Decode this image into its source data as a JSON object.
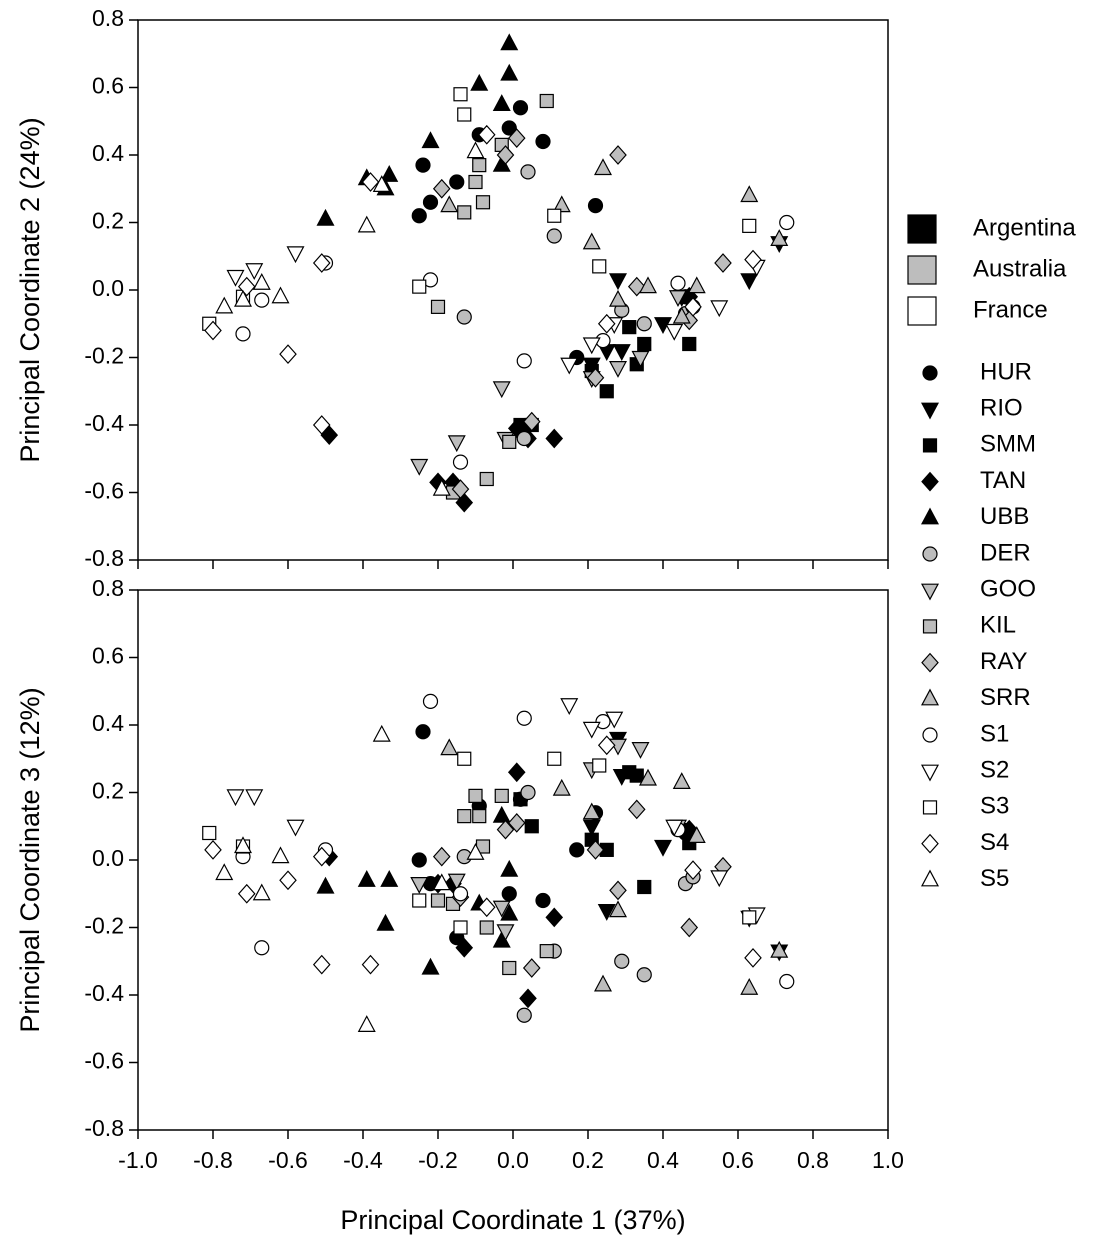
{
  "chart_data": {
    "type": "scatter",
    "xlabel": "Principal Coordinate 1 (37%)",
    "xlim": [
      -1.0,
      1.0
    ],
    "xticks": [
      {
        "value": -1.0,
        "label": "-1.0"
      },
      -0.8,
      -0.6,
      -0.4,
      -0.2,
      {
        "value": 0,
        "label": "0.0"
      },
      0.2,
      0.4,
      0.6,
      0.8,
      {
        "value": 1.0,
        "label": "1.0"
      }
    ],
    "panels": [
      {
        "ylabel": "Principal Coordinate 2 (24%)",
        "ylim": [
          -0.8,
          0.8
        ],
        "yticks": [
          -0.8,
          -0.6,
          -0.4,
          -0.2,
          {
            "value": 0,
            "label": "0.0"
          },
          0.2,
          0.4,
          0.6,
          0.8
        ]
      },
      {
        "ylabel": "Principal Coordinate 3 (12%)",
        "ylim": [
          -0.8,
          0.8
        ],
        "yticks": [
          -0.8,
          -0.6,
          -0.4,
          -0.2,
          {
            "value": 0,
            "label": "0.0"
          },
          0.2,
          0.4,
          0.6,
          0.8
        ]
      }
    ],
    "groups": [
      {
        "name": "Argentina",
        "color": "#000000"
      },
      {
        "name": "Australia",
        "color": "#bdbdbd"
      },
      {
        "name": "France",
        "color": "#ffffff"
      }
    ],
    "series": [
      {
        "name": "HUR",
        "marker": "circle",
        "color": "#000000",
        "x": [
          -0.25,
          -0.24,
          -0.22,
          -0.15,
          -0.09,
          -0.01,
          0.02,
          0.08,
          0.17,
          0.22,
          0.46
        ],
        "y": [
          0.22,
          0.37,
          0.26,
          0.32,
          0.46,
          0.48,
          0.54,
          0.44,
          -0.2,
          0.25,
          -0.02
        ],
        "z": [
          0.0,
          0.38,
          -0.07,
          -0.23,
          0.16,
          -0.1,
          0.18,
          -0.12,
          0.03,
          0.14,
          0.08
        ]
      },
      {
        "name": "RIO",
        "marker": "down-triangle",
        "color": "#000000",
        "x": [
          0.28,
          0.21,
          0.25,
          0.29,
          0.4,
          0.45,
          0.63,
          0.71
        ],
        "y": [
          0.03,
          -0.22,
          -0.18,
          -0.18,
          -0.1,
          -0.02,
          0.03,
          0.14
        ],
        "z": [
          0.36,
          0.1,
          -0.15,
          0.25,
          0.04,
          0.09,
          -0.17,
          -0.27
        ]
      },
      {
        "name": "SMM",
        "marker": "square",
        "color": "#000000",
        "x": [
          0.21,
          0.25,
          0.31,
          0.33,
          0.35,
          0.47,
          0.02,
          0.05
        ],
        "y": [
          -0.24,
          -0.3,
          -0.11,
          -0.22,
          -0.16,
          -0.16,
          -0.4,
          -0.4
        ],
        "z": [
          0.06,
          0.03,
          0.26,
          0.25,
          -0.08,
          0.05,
          0.18,
          0.1
        ]
      },
      {
        "name": "TAN",
        "marker": "diamond",
        "color": "#000000",
        "x": [
          -0.49,
          -0.2,
          -0.16,
          -0.13,
          0.01,
          0.04,
          0.11,
          0.47
        ],
        "y": [
          -0.43,
          -0.57,
          -0.57,
          -0.63,
          -0.41,
          -0.44,
          -0.44,
          -0.02
        ],
        "z": [
          0.01,
          -0.07,
          -0.07,
          -0.26,
          0.26,
          -0.41,
          -0.17,
          0.09
        ]
      },
      {
        "name": "UBB",
        "marker": "up-triangle",
        "color": "#000000",
        "x": [
          -0.5,
          -0.39,
          -0.34,
          -0.33,
          -0.22,
          -0.09,
          -0.03,
          -0.03,
          -0.01,
          -0.01
        ],
        "y": [
          0.21,
          0.33,
          0.3,
          0.34,
          0.44,
          0.61,
          0.55,
          0.37,
          0.73,
          0.64
        ],
        "z": [
          -0.08,
          -0.06,
          -0.19,
          -0.06,
          -0.32,
          -0.13,
          0.13,
          -0.24,
          -0.03,
          -0.16
        ]
      },
      {
        "name": "DER",
        "marker": "circle",
        "color": "#bdbdbd",
        "x": [
          -0.13,
          0.04,
          0.11,
          0.29,
          0.35,
          0.46,
          0.03,
          0.48
        ],
        "y": [
          -0.08,
          0.35,
          0.16,
          -0.06,
          -0.1,
          -0.07,
          -0.44,
          -0.05
        ],
        "z": [
          0.01,
          0.2,
          -0.27,
          -0.3,
          -0.34,
          -0.07,
          -0.46,
          -0.05
        ]
      },
      {
        "name": "GOO",
        "marker": "down-triangle",
        "color": "#bdbdbd",
        "x": [
          -0.25,
          -0.15,
          -0.03,
          -0.02,
          0.21,
          0.28,
          0.34,
          0.44
        ],
        "y": [
          -0.52,
          -0.45,
          -0.29,
          -0.44,
          -0.26,
          -0.23,
          -0.2,
          -0.02
        ],
        "z": [
          -0.07,
          -0.06,
          -0.14,
          -0.21,
          0.27,
          0.34,
          0.33,
          0.1
        ]
      },
      {
        "name": "KIL",
        "marker": "square",
        "color": "#bdbdbd",
        "x": [
          -0.2,
          -0.13,
          -0.1,
          -0.09,
          -0.08,
          -0.03,
          0.09,
          -0.07,
          -0.01,
          -0.16
        ],
        "y": [
          -0.05,
          0.23,
          0.32,
          0.37,
          0.26,
          0.43,
          0.56,
          -0.56,
          -0.45,
          -0.6
        ],
        "z": [
          -0.12,
          0.13,
          0.19,
          0.13,
          0.04,
          0.19,
          -0.27,
          -0.2,
          -0.32,
          -0.13
        ]
      },
      {
        "name": "RAY",
        "marker": "diamond",
        "color": "#bdbdbd",
        "x": [
          -0.19,
          -0.02,
          0.01,
          0.28,
          0.33,
          0.47,
          0.56,
          0.22,
          0.05,
          -0.14
        ],
        "y": [
          0.3,
          0.4,
          0.45,
          0.4,
          0.01,
          -0.09,
          0.08,
          -0.26,
          -0.39,
          -0.59
        ],
        "z": [
          0.01,
          0.09,
          0.11,
          -0.09,
          0.15,
          -0.2,
          -0.02,
          0.03,
          -0.32,
          -0.11
        ]
      },
      {
        "name": "SRR",
        "marker": "up-triangle",
        "color": "#bdbdbd",
        "x": [
          -0.17,
          0.13,
          0.21,
          0.24,
          0.28,
          0.36,
          0.49,
          0.63,
          0.71,
          0.45
        ],
        "y": [
          0.25,
          0.25,
          0.14,
          0.36,
          -0.03,
          0.01,
          0.01,
          0.28,
          0.15,
          -0.08
        ],
        "z": [
          0.33,
          0.21,
          0.14,
          -0.37,
          -0.15,
          0.24,
          0.07,
          -0.38,
          -0.27,
          0.23
        ]
      },
      {
        "name": "S1",
        "marker": "circle",
        "color": "#ffffff",
        "x": [
          -0.72,
          -0.67,
          -0.5,
          -0.22,
          -0.14,
          0.03,
          0.24,
          0.44,
          0.73
        ],
        "y": [
          -0.13,
          -0.03,
          0.08,
          0.03,
          -0.51,
          -0.21,
          -0.15,
          0.02,
          0.2
        ],
        "z": [
          0.01,
          -0.26,
          0.03,
          0.47,
          -0.1,
          0.42,
          0.41,
          0.09,
          -0.36
        ]
      },
      {
        "name": "S2",
        "marker": "down-triangle",
        "color": "#ffffff",
        "x": [
          -0.74,
          -0.69,
          -0.58,
          0.15,
          0.21,
          0.27,
          0.43,
          0.55,
          0.65
        ],
        "y": [
          0.04,
          0.06,
          0.11,
          -0.22,
          -0.16,
          -0.1,
          -0.12,
          -0.05,
          0.07
        ],
        "z": [
          0.19,
          0.19,
          0.1,
          0.46,
          0.39,
          0.42,
          0.1,
          -0.05,
          -0.16
        ]
      },
      {
        "name": "S3",
        "marker": "square",
        "color": "#ffffff",
        "x": [
          -0.81,
          -0.72,
          -0.25,
          -0.14,
          -0.13,
          0.11,
          0.23,
          0.63
        ],
        "y": [
          -0.1,
          -0.02,
          0.01,
          0.58,
          0.52,
          0.22,
          0.07,
          0.19
        ],
        "z": [
          0.08,
          0.04,
          -0.12,
          -0.2,
          0.3,
          0.3,
          0.28,
          -0.17
        ]
      },
      {
        "name": "S4",
        "marker": "diamond",
        "color": "#ffffff",
        "x": [
          -0.8,
          -0.71,
          -0.6,
          -0.51,
          -0.51,
          -0.38,
          -0.07,
          0.25,
          0.48,
          0.64
        ],
        "y": [
          -0.12,
          0.01,
          -0.19,
          0.08,
          -0.4,
          0.32,
          0.46,
          -0.1,
          -0.05,
          0.09
        ],
        "z": [
          0.03,
          -0.1,
          -0.06,
          0.01,
          -0.31,
          -0.31,
          -0.14,
          0.34,
          -0.03,
          -0.29
        ]
      },
      {
        "name": "S5",
        "marker": "up-triangle",
        "color": "#ffffff",
        "x": [
          -0.77,
          -0.72,
          -0.67,
          -0.62,
          -0.39,
          -0.35,
          -0.1,
          -0.19
        ],
        "y": [
          -0.05,
          -0.03,
          0.02,
          -0.02,
          0.19,
          0.31,
          0.41,
          -0.59
        ],
        "z": [
          -0.04,
          0.04,
          -0.1,
          0.01,
          -0.49,
          0.37,
          0.02,
          -0.07
        ]
      }
    ]
  }
}
